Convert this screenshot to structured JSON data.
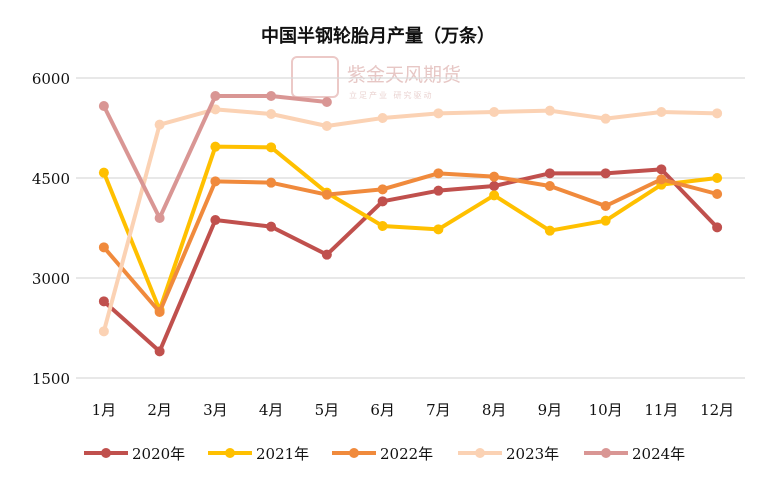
{
  "chart_data": {
    "type": "line",
    "title": "中国半钢轮胎月产量（万条）",
    "xlabel": "",
    "ylabel": "",
    "categories": [
      "1月",
      "2月",
      "3月",
      "4月",
      "5月",
      "6月",
      "7月",
      "8月",
      "9月",
      "10月",
      "11月",
      "12月"
    ],
    "ylim": [
      1500,
      6000
    ],
    "yticks": [
      1500,
      3000,
      4500,
      6000
    ],
    "grid": true,
    "legend_position": "bottom",
    "series": [
      {
        "name": "2020年",
        "color": "#c0504d",
        "values": [
          2650,
          1900,
          3870,
          3770,
          3350,
          4150,
          4310,
          4380,
          4570,
          4570,
          4630,
          3760
        ]
      },
      {
        "name": "2021年",
        "color": "#ffc000",
        "values": [
          4580,
          2520,
          4970,
          4960,
          4280,
          3780,
          3730,
          4240,
          3710,
          3860,
          4400,
          4500
        ]
      },
      {
        "name": "2022年",
        "color": "#f08a3c",
        "values": [
          3460,
          2490,
          4450,
          4430,
          4250,
          4330,
          4570,
          4520,
          4380,
          4080,
          4480,
          4260
        ]
      },
      {
        "name": "2023年",
        "color": "#fbd2b4",
        "values": [
          2200,
          5300,
          5530,
          5460,
          5280,
          5400,
          5470,
          5490,
          5510,
          5390,
          5490,
          5470
        ]
      },
      {
        "name": "2024年",
        "color": "#d99694",
        "values": [
          5580,
          3900,
          5730,
          5730,
          5640,
          null,
          null,
          null,
          null,
          null,
          null,
          null
        ]
      }
    ]
  },
  "watermark": {
    "name": "紫金天风期货",
    "subtitle": "立足产业 研究驱动",
    "seal": "紫金天风"
  }
}
